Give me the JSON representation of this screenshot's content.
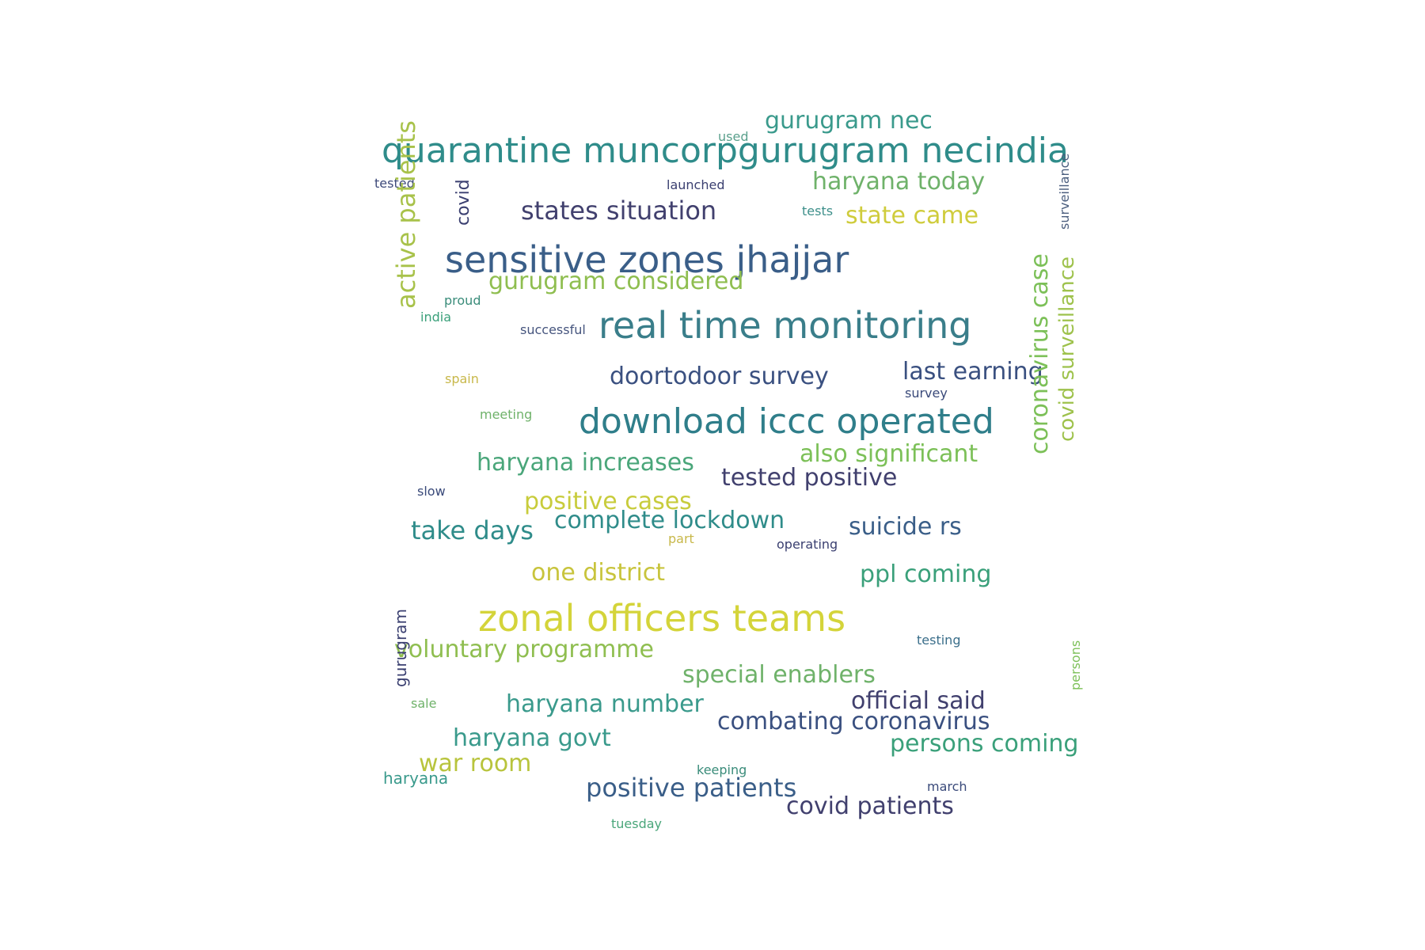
{
  "words": [
    {
      "text": "quarantine muncorpgurugram necindia",
      "color": "#2f8c8a"
    },
    {
      "text": "gurugram nec",
      "color": "#3a9a8c"
    },
    {
      "text": "used",
      "color": "#5aa08c"
    },
    {
      "text": "tested",
      "color": "#3e4a7a"
    },
    {
      "text": "launched",
      "color": "#3a3f70"
    },
    {
      "text": "haryana today",
      "color": "#6fb26a"
    },
    {
      "text": "states situation",
      "color": "#41406e"
    },
    {
      "text": "tests",
      "color": "#3d8f8a"
    },
    {
      "text": "state came",
      "color": "#cfcc3c"
    },
    {
      "text": "covid",
      "color": "#3a3f70"
    },
    {
      "text": "surveillance",
      "color": "#4b5e7e"
    },
    {
      "text": "sensitive zones jhajjar",
      "color": "#3a5e88"
    },
    {
      "text": "active patients",
      "color": "#a8c24a"
    },
    {
      "text": "gurugram considered",
      "color": "#8fbe50"
    },
    {
      "text": "proud",
      "color": "#3a8c7a"
    },
    {
      "text": "india",
      "color": "#3aa07a"
    },
    {
      "text": "successful",
      "color": "#46557e"
    },
    {
      "text": "real time monitoring",
      "color": "#3a7e8a"
    },
    {
      "text": "spain",
      "color": "#c8b84a"
    },
    {
      "text": "doortodoor survey",
      "color": "#3a5080"
    },
    {
      "text": "last earning",
      "color": "#3a5080"
    },
    {
      "text": "survey",
      "color": "#3a4a7a"
    },
    {
      "text": "meeting",
      "color": "#6fb26a"
    },
    {
      "text": "download iccc operated",
      "color": "#2f7e8a"
    },
    {
      "text": "coronavirus case",
      "color": "#7cc058"
    },
    {
      "text": "covid surveillance",
      "color": "#9ec24c"
    },
    {
      "text": "haryana increases",
      "color": "#4aa67a"
    },
    {
      "text": "also significant",
      "color": "#7cc058"
    },
    {
      "text": "tested positive",
      "color": "#41406e"
    },
    {
      "text": "slow",
      "color": "#3a4a7a"
    },
    {
      "text": "positive cases",
      "color": "#c8cc3c"
    },
    {
      "text": "complete lockdown",
      "color": "#2f8c8a"
    },
    {
      "text": "take days",
      "color": "#2f8c8a"
    },
    {
      "text": "suicide rs",
      "color": "#3a5e88"
    },
    {
      "text": "part",
      "color": "#c8b84a"
    },
    {
      "text": "operating",
      "color": "#3a3f70"
    },
    {
      "text": "one district",
      "color": "#c8c43c"
    },
    {
      "text": "ppl coming",
      "color": "#3aa07a"
    },
    {
      "text": "zonal officers teams",
      "color": "#d4d43a"
    },
    {
      "text": "testing",
      "color": "#3a6e8a"
    },
    {
      "text": "voluntary programme",
      "color": "#8fbe50"
    },
    {
      "text": "special enablers",
      "color": "#6fb26a"
    },
    {
      "text": "official said",
      "color": "#41406e"
    },
    {
      "text": "gurugram",
      "color": "#3a3f70"
    },
    {
      "text": "sale",
      "color": "#6fb26a"
    },
    {
      "text": "haryana number",
      "color": "#3a9a8c"
    },
    {
      "text": "combating coronavirus",
      "color": "#3a5080"
    },
    {
      "text": "haryana govt",
      "color": "#3a9a8c"
    },
    {
      "text": "persons coming",
      "color": "#3aa07a"
    },
    {
      "text": "war room",
      "color": "#b8c43c"
    },
    {
      "text": "keeping",
      "color": "#3a8c7a"
    },
    {
      "text": "haryana",
      "color": "#3a9a8c"
    },
    {
      "text": "positive patients",
      "color": "#3a5e88"
    },
    {
      "text": "march",
      "color": "#3a4a7a"
    },
    {
      "text": "persons",
      "color": "#7cc058"
    },
    {
      "text": "covid patients",
      "color": "#41406e"
    },
    {
      "text": "tuesday",
      "color": "#4aa67a"
    }
  ]
}
